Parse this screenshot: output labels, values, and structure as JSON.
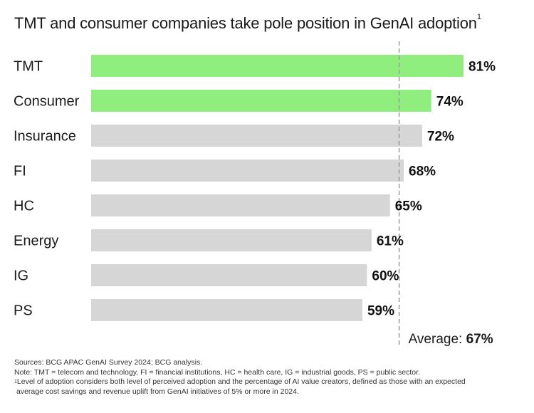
{
  "title": "TMT and consumer companies take pole position in GenAI adoption",
  "title_footnote_mark": "1",
  "chart_data": {
    "type": "bar",
    "orientation": "horizontal",
    "categories": [
      "TMT",
      "Consumer",
      "Insurance",
      "FI",
      "HC",
      "Energy",
      "IG",
      "PS"
    ],
    "values": [
      81,
      74,
      72,
      68,
      65,
      61,
      60,
      59
    ],
    "value_labels": [
      "81%",
      "74%",
      "72%",
      "68%",
      "65%",
      "61%",
      "60%",
      "59%"
    ],
    "highlighted": [
      true,
      true,
      false,
      false,
      false,
      false,
      false,
      false
    ],
    "xlim": [
      0,
      81
    ],
    "grid": false,
    "average": {
      "value": 67,
      "label_prefix": "Average: ",
      "label_value": "67%"
    },
    "colors": {
      "highlight": "#90ee7e",
      "default": "#d6d6d6",
      "average_line": "#9a9a9a"
    }
  },
  "footer": {
    "sources": "Sources: BCG APAC GenAI Survey 2024; BCG analysis.",
    "note": "Note: TMT = telecom and technology, FI = financial institutions, HC = health care, IG = industrial goods, PS = public sector.",
    "footnote_mark": "1",
    "footnote_line1": "Level of adoption considers both level of perceived adoption and the percentage of AI value creators, defined as those with an expected",
    "footnote_line2": "average cost savings and revenue uplift from GenAI initiatives of 5% or more in 2024."
  }
}
